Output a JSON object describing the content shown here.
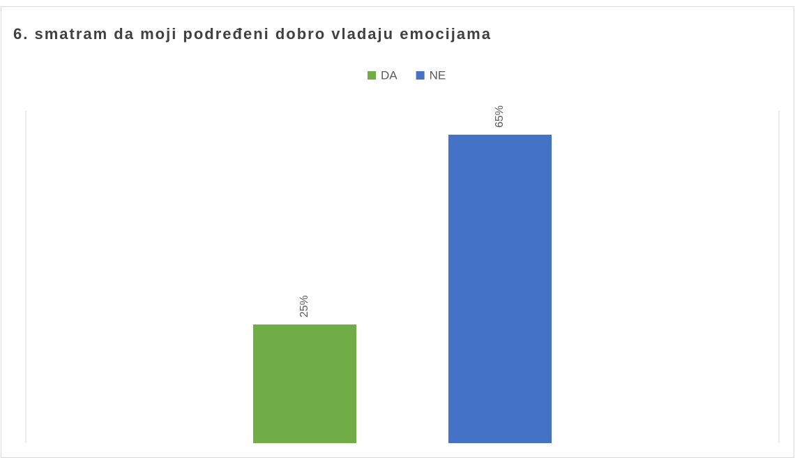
{
  "chart_data": {
    "type": "bar",
    "title": "6. smatram da moji podređeni dobro vladaju emocijama",
    "categories": [
      null
    ],
    "series": [
      {
        "name": "DA",
        "color": "#70ad47",
        "values": [
          25
        ],
        "value_labels": [
          "25%"
        ]
      },
      {
        "name": "NE",
        "color": "#4472c4",
        "values": [
          65
        ],
        "value_labels": [
          "65%"
        ]
      }
    ],
    "ylim": [
      0,
      70
    ]
  }
}
